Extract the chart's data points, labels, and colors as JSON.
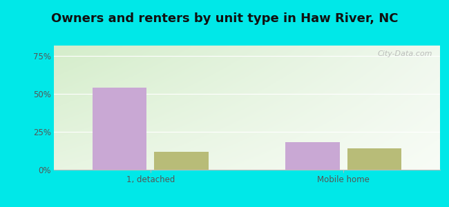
{
  "title": "Owners and renters by unit type in Haw River, NC",
  "categories": [
    "1, detached",
    "Mobile home"
  ],
  "owner_values": [
    54.0,
    18.0
  ],
  "renter_values": [
    12.0,
    14.0
  ],
  "owner_color": "#c9a8d4",
  "renter_color": "#b8bc78",
  "bar_width": 0.28,
  "yticks": [
    0,
    25,
    50,
    75
  ],
  "ytick_labels": [
    "0%",
    "25%",
    "50%",
    "75%"
  ],
  "ylim": [
    0,
    82
  ],
  "title_fontsize": 13,
  "watermark": "City-Data.com",
  "cyan_bg": "#00e8e8"
}
